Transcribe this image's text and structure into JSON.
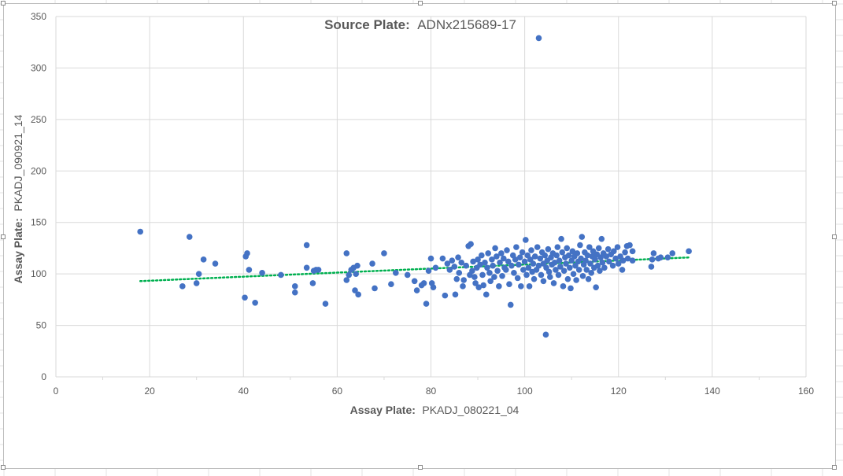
{
  "chart_data": {
    "type": "scatter",
    "title": {
      "prefix": "Source Plate:",
      "value": "ADNx215689-17"
    },
    "xlabel": {
      "prefix": "Assay Plate:",
      "value": "PKADJ_080221_04"
    },
    "ylabel": {
      "prefix": "Assay Plate:",
      "value": "PKADJ_090921_14"
    },
    "xlim": [
      0,
      160
    ],
    "ylim": [
      0,
      350
    ],
    "x_ticks": [
      0,
      20,
      40,
      60,
      80,
      100,
      120,
      140,
      160
    ],
    "y_ticks": [
      0,
      50,
      100,
      150,
      200,
      250,
      300,
      350
    ],
    "grid": true,
    "legend": "none",
    "point_color": "#4472C4",
    "trend_color": "#00B050",
    "trendline": {
      "type": "linear-dotted",
      "start": [
        18,
        93
      ],
      "end": [
        135,
        116
      ]
    },
    "points": [
      [
        18,
        141
      ],
      [
        27,
        88
      ],
      [
        28.5,
        136
      ],
      [
        30,
        91
      ],
      [
        30.5,
        100
      ],
      [
        31.5,
        114
      ],
      [
        34,
        110
      ],
      [
        40.3,
        77
      ],
      [
        40.5,
        117
      ],
      [
        40.8,
        120
      ],
      [
        41.2,
        104
      ],
      [
        42.5,
        72
      ],
      [
        44,
        101
      ],
      [
        48,
        99
      ],
      [
        51,
        88
      ],
      [
        51,
        82
      ],
      [
        53.5,
        128
      ],
      [
        53.5,
        106
      ],
      [
        54.8,
        91
      ],
      [
        55,
        103
      ],
      [
        55.5,
        104
      ],
      [
        56,
        104
      ],
      [
        57.5,
        71
      ],
      [
        62,
        120
      ],
      [
        62,
        94
      ],
      [
        62.5,
        99
      ],
      [
        63,
        104
      ],
      [
        63.5,
        106
      ],
      [
        63.8,
        84
      ],
      [
        64,
        100
      ],
      [
        64.3,
        108
      ],
      [
        64.5,
        80
      ],
      [
        67.5,
        110
      ],
      [
        68,
        86
      ],
      [
        70,
        120
      ],
      [
        71.5,
        90
      ],
      [
        72.5,
        101
      ],
      [
        75,
        99
      ],
      [
        76.5,
        93
      ],
      [
        77,
        84
      ],
      [
        78,
        89
      ],
      [
        78.5,
        91
      ],
      [
        79,
        71
      ],
      [
        79.5,
        103
      ],
      [
        80,
        115
      ],
      [
        80.2,
        91
      ],
      [
        80.5,
        87
      ],
      [
        81,
        106
      ],
      [
        82.5,
        115
      ],
      [
        83,
        79
      ],
      [
        83.5,
        110
      ],
      [
        84,
        104
      ],
      [
        84.5,
        113
      ],
      [
        85,
        107
      ],
      [
        85.2,
        80
      ],
      [
        85.5,
        95
      ],
      [
        85.8,
        116
      ],
      [
        86,
        101
      ],
      [
        86.5,
        111
      ],
      [
        86.8,
        88
      ],
      [
        87,
        94
      ],
      [
        87.5,
        108
      ],
      [
        88,
        127
      ],
      [
        88.3,
        99
      ],
      [
        88.5,
        129
      ],
      [
        88.8,
        103
      ],
      [
        89,
        112
      ],
      [
        89.3,
        97
      ],
      [
        89.5,
        91
      ],
      [
        89.8,
        106
      ],
      [
        90,
        114
      ],
      [
        90.2,
        87
      ],
      [
        90.5,
        109
      ],
      [
        90.8,
        118
      ],
      [
        91,
        99
      ],
      [
        91.2,
        89
      ],
      [
        91.5,
        111
      ],
      [
        91.8,
        80
      ],
      [
        92,
        106
      ],
      [
        92.2,
        120
      ],
      [
        92.5,
        101
      ],
      [
        92.7,
        93
      ],
      [
        93,
        114
      ],
      [
        93.2,
        108
      ],
      [
        93.5,
        97
      ],
      [
        93.7,
        125
      ],
      [
        94,
        117
      ],
      [
        94.2,
        103
      ],
      [
        94.5,
        88
      ],
      [
        94.7,
        111
      ],
      [
        95,
        120
      ],
      [
        95.2,
        98
      ],
      [
        95.5,
        115
      ],
      [
        95.7,
        106
      ],
      [
        96,
        104
      ],
      [
        96.2,
        123
      ],
      [
        96.5,
        112
      ],
      [
        96.7,
        90
      ],
      [
        97,
        70
      ],
      [
        97.2,
        108
      ],
      [
        97.5,
        118
      ],
      [
        97.7,
        101
      ],
      [
        98,
        114
      ],
      [
        98.2,
        126
      ],
      [
        98.5,
        96
      ],
      [
        98.7,
        109
      ],
      [
        99,
        116
      ],
      [
        99.2,
        88
      ],
      [
        99.5,
        121
      ],
      [
        99.7,
        104
      ],
      [
        100,
        112
      ],
      [
        100.2,
        133
      ],
      [
        100.4,
        99
      ],
      [
        100.6,
        118
      ],
      [
        100.8,
        106
      ],
      [
        101,
        88
      ],
      [
        101.2,
        114
      ],
      [
        101.4,
        123
      ],
      [
        101.6,
        102
      ],
      [
        101.8,
        110
      ],
      [
        102,
        95
      ],
      [
        102.2,
        117
      ],
      [
        102.5,
        104
      ],
      [
        102.7,
        126
      ],
      [
        103,
        108
      ],
      [
        103,
        329
      ],
      [
        103.3,
        115
      ],
      [
        103.5,
        99
      ],
      [
        103.7,
        121
      ],
      [
        104,
        93
      ],
      [
        104,
        110
      ],
      [
        104.3,
        118
      ],
      [
        104.5,
        41
      ],
      [
        104.6,
        106
      ],
      [
        104.8,
        113
      ],
      [
        105,
        124
      ],
      [
        105.2,
        102
      ],
      [
        105.4,
        97
      ],
      [
        105.6,
        116
      ],
      [
        105.8,
        109
      ],
      [
        106,
        120
      ],
      [
        106.2,
        91
      ],
      [
        106.4,
        111
      ],
      [
        106.6,
        104
      ],
      [
        106.8,
        118
      ],
      [
        107,
        126
      ],
      [
        107.2,
        99
      ],
      [
        107.4,
        113
      ],
      [
        107.6,
        107
      ],
      [
        107.8,
        134
      ],
      [
        108,
        121
      ],
      [
        108.2,
        88
      ],
      [
        108.4,
        103
      ],
      [
        108.6,
        116
      ],
      [
        108.8,
        110
      ],
      [
        109,
        125
      ],
      [
        109.2,
        95
      ],
      [
        109.4,
        118
      ],
      [
        109.6,
        106
      ],
      [
        109.8,
        86
      ],
      [
        110,
        113
      ],
      [
        110.2,
        122
      ],
      [
        110.4,
        100
      ],
      [
        110.6,
        117
      ],
      [
        110.8,
        108
      ],
      [
        111,
        94
      ],
      [
        111.2,
        120
      ],
      [
        111.4,
        112
      ],
      [
        111.6,
        104
      ],
      [
        111.8,
        128
      ],
      [
        112,
        115
      ],
      [
        112.2,
        136
      ],
      [
        112.4,
        98
      ],
      [
        112.6,
        109
      ],
      [
        112.8,
        121
      ],
      [
        113,
        113
      ],
      [
        113.2,
        104
      ],
      [
        113.4,
        118
      ],
      [
        113.6,
        95
      ],
      [
        113.8,
        126
      ],
      [
        114,
        110
      ],
      [
        114.2,
        101
      ],
      [
        114.4,
        117
      ],
      [
        114.6,
        122
      ],
      [
        114.8,
        106
      ],
      [
        115,
        114
      ],
      [
        115.2,
        87
      ],
      [
        115.4,
        119
      ],
      [
        115.6,
        108
      ],
      [
        115.8,
        125
      ],
      [
        116,
        103
      ],
      [
        116.2,
        116
      ],
      [
        116.4,
        134
      ],
      [
        116.6,
        111
      ],
      [
        116.8,
        120
      ],
      [
        117,
        106
      ],
      [
        117.4,
        117
      ],
      [
        117.8,
        124
      ],
      [
        118,
        112
      ],
      [
        118.4,
        119
      ],
      [
        118.8,
        108
      ],
      [
        119,
        122
      ],
      [
        119.4,
        115
      ],
      [
        119.8,
        126
      ],
      [
        120,
        110
      ],
      [
        120.4,
        117
      ],
      [
        120.8,
        104
      ],
      [
        121,
        113
      ],
      [
        121.4,
        121
      ],
      [
        121.8,
        127
      ],
      [
        122,
        115
      ],
      [
        122.4,
        128
      ],
      [
        123,
        122
      ],
      [
        123,
        113
      ],
      [
        127,
        107
      ],
      [
        127.2,
        114
      ],
      [
        127.5,
        120
      ],
      [
        128.5,
        115
      ],
      [
        129,
        116
      ],
      [
        130.5,
        116
      ],
      [
        131.5,
        120
      ],
      [
        135,
        122
      ]
    ]
  }
}
